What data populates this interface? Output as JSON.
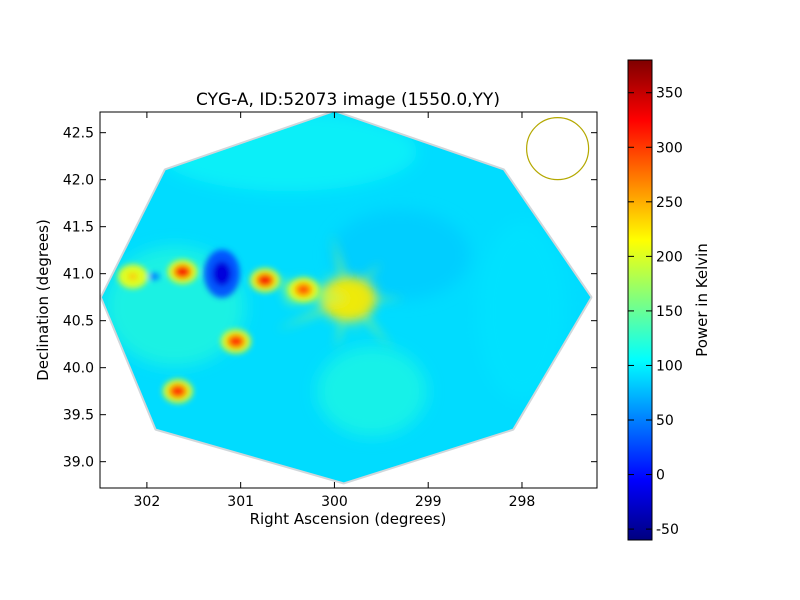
{
  "chart_data": {
    "type": "heatmap",
    "title": "CYG-A, ID:52073 image (1550.0,YY)",
    "xlabel": "Right Ascension (degrees)",
    "ylabel": "Declination (degrees)",
    "x_axis": {
      "range": [
        302.5,
        297.2
      ],
      "inverted": true,
      "ticks": [
        302,
        301,
        300,
        299,
        298
      ]
    },
    "y_axis": {
      "range": [
        38.72,
        42.72
      ],
      "ticks": [
        39.0,
        39.5,
        40.0,
        40.5,
        41.0,
        41.5,
        42.0,
        42.5
      ]
    },
    "colorbar": {
      "label": "Power in Kelvin",
      "range": [
        -60,
        380
      ],
      "ticks": [
        -50,
        0,
        50,
        100,
        150,
        200,
        250,
        300,
        350
      ],
      "colormap": "jet"
    },
    "grid": false,
    "footprint": {
      "shape": "octagon",
      "vertices": [
        [
          300.0,
          42.72
        ],
        [
          298.2,
          42.1
        ],
        [
          297.27,
          40.75
        ],
        [
          298.1,
          39.35
        ],
        [
          299.9,
          38.78
        ],
        [
          301.9,
          39.35
        ],
        [
          302.48,
          40.75
        ],
        [
          301.8,
          42.1
        ]
      ]
    },
    "beam": {
      "ra": 297.62,
      "dec": 42.33,
      "color": "#b4a800"
    },
    "background_level": 90,
    "sources": [
      {
        "ra": 299.85,
        "dec": 40.73,
        "peak": 270
      },
      {
        "ra": 301.62,
        "dec": 41.02,
        "peak": 330
      },
      {
        "ra": 300.74,
        "dec": 40.93,
        "peak": 330
      },
      {
        "ra": 300.33,
        "dec": 40.83,
        "peak": 300
      },
      {
        "ra": 301.05,
        "dec": 40.28,
        "peak": 320
      },
      {
        "ra": 301.67,
        "dec": 39.75,
        "peak": 320
      },
      {
        "ra": 302.15,
        "dec": 40.97,
        "peak": 240
      },
      {
        "ra": 301.2,
        "dec": 41.0,
        "peak": -20
      },
      {
        "ra": 301.92,
        "dec": 40.97,
        "peak": 20
      }
    ]
  }
}
